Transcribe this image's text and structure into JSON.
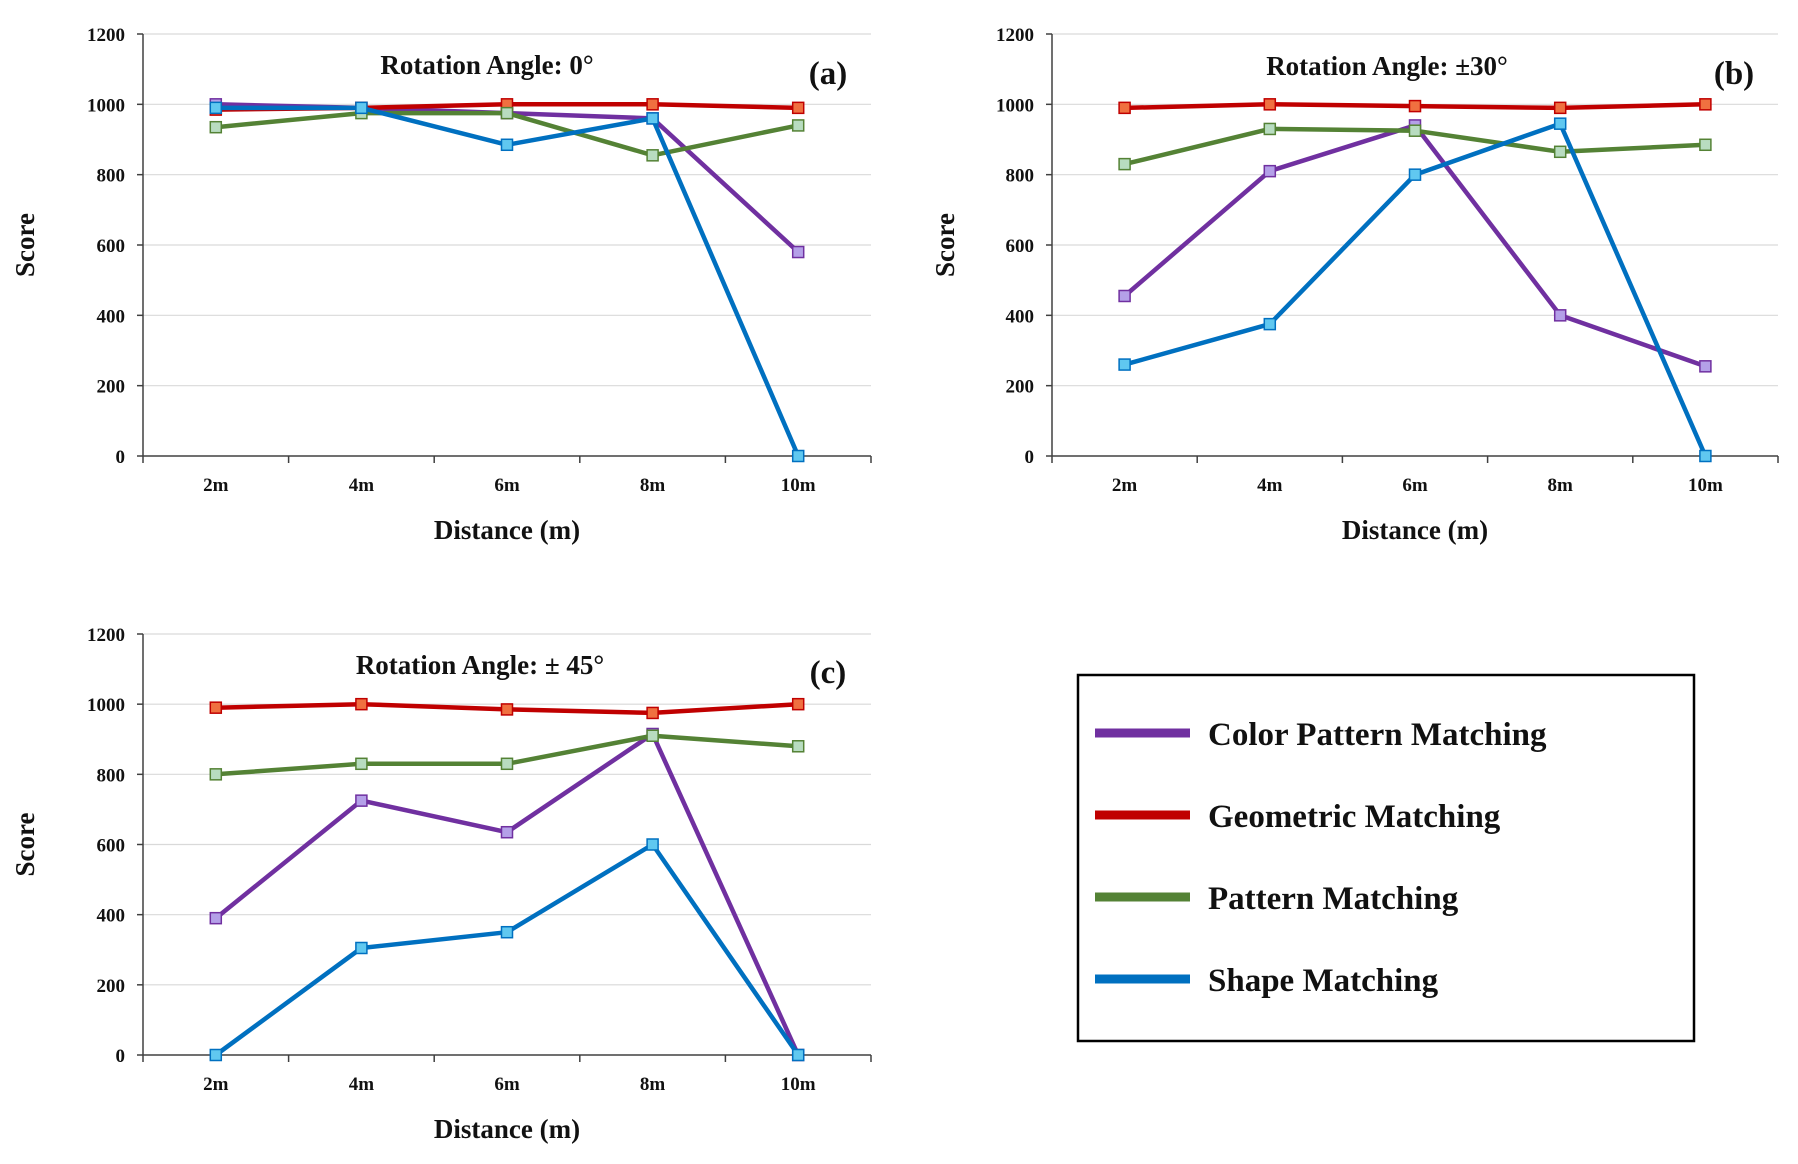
{
  "chart_data": [
    {
      "type": "line",
      "title": "Rotation Angle: 0°",
      "panel_label": "(a)",
      "xlabel": "Distance (m)",
      "ylabel": "Score",
      "categories": [
        "2m",
        "4m",
        "6m",
        "8m",
        "10m"
      ],
      "ylim": [
        0,
        1200
      ],
      "yticks": [
        0,
        200,
        400,
        600,
        800,
        1000,
        1200
      ],
      "grid": true,
      "series": [
        {
          "name": "Color Pattern Matching",
          "color": "#7030A0",
          "values": [
            1000,
            990,
            975,
            960,
            580
          ]
        },
        {
          "name": "Geometric Matching",
          "color": "#C00000",
          "values": [
            985,
            990,
            1000,
            1000,
            990
          ]
        },
        {
          "name": "Pattern Matching",
          "color": "#548235",
          "values": [
            935,
            975,
            975,
            855,
            940
          ]
        },
        {
          "name": "Shape Matching",
          "color": "#0070C0",
          "values": [
            990,
            990,
            885,
            960,
            0
          ]
        }
      ]
    },
    {
      "type": "line",
      "title": "Rotation Angle: ±30°",
      "panel_label": "(b)",
      "xlabel": "Distance (m)",
      "ylabel": "Score",
      "categories": [
        "2m",
        "4m",
        "6m",
        "8m",
        "10m"
      ],
      "ylim": [
        0,
        1200
      ],
      "yticks": [
        0,
        200,
        400,
        600,
        800,
        1000,
        1200
      ],
      "grid": true,
      "series": [
        {
          "name": "Color Pattern Matching",
          "color": "#7030A0",
          "values": [
            455,
            810,
            940,
            400,
            255
          ]
        },
        {
          "name": "Geometric Matching",
          "color": "#C00000",
          "values": [
            990,
            1000,
            995,
            990,
            1000
          ]
        },
        {
          "name": "Pattern Matching",
          "color": "#548235",
          "values": [
            830,
            930,
            925,
            865,
            885
          ]
        },
        {
          "name": "Shape Matching",
          "color": "#0070C0",
          "values": [
            260,
            375,
            800,
            945,
            0
          ]
        }
      ]
    },
    {
      "type": "line",
      "title": "Rotation Angle: ± 45°",
      "panel_label": "(c)",
      "xlabel": "Distance (m)",
      "ylabel": "Score",
      "categories": [
        "2m",
        "4m",
        "6m",
        "8m",
        "10m"
      ],
      "ylim": [
        0,
        1200
      ],
      "yticks": [
        0,
        200,
        400,
        600,
        800,
        1000,
        1200
      ],
      "grid": true,
      "series": [
        {
          "name": "Color Pattern Matching",
          "color": "#7030A0",
          "values": [
            390,
            725,
            635,
            915,
            0
          ]
        },
        {
          "name": "Geometric Matching",
          "color": "#C00000",
          "values": [
            990,
            1000,
            985,
            975,
            1000
          ]
        },
        {
          "name": "Pattern Matching",
          "color": "#548235",
          "values": [
            800,
            830,
            830,
            910,
            880
          ]
        },
        {
          "name": "Shape Matching",
          "color": "#0070C0",
          "values": [
            0,
            305,
            350,
            600,
            0
          ]
        }
      ]
    }
  ],
  "legend": {
    "items": [
      {
        "label": "Color Pattern Matching",
        "color": "#7030A0"
      },
      {
        "label": "Geometric Matching",
        "color": "#C00000"
      },
      {
        "label": "Pattern Matching",
        "color": "#548235"
      },
      {
        "label": "Shape Matching",
        "color": "#0070C0"
      }
    ]
  }
}
